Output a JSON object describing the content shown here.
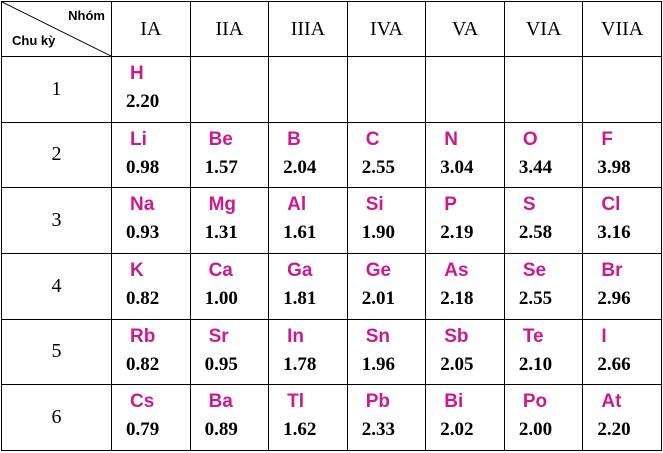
{
  "header": {
    "corner_top": "Nhóm",
    "corner_bottom": "Chu kỳ",
    "groups": [
      "IA",
      "IIA",
      "IIIA",
      "IVA",
      "VA",
      "VIA",
      "VIIA"
    ]
  },
  "rows": [
    {
      "period": "1",
      "cells": [
        {
          "symbol": "H",
          "value": "2.20"
        },
        null,
        null,
        null,
        null,
        null,
        null
      ]
    },
    {
      "period": "2",
      "cells": [
        {
          "symbol": "Li",
          "value": "0.98"
        },
        {
          "symbol": "Be",
          "value": "1.57"
        },
        {
          "symbol": "B",
          "value": "2.04"
        },
        {
          "symbol": "C",
          "value": "2.55"
        },
        {
          "symbol": "N",
          "value": "3.04"
        },
        {
          "symbol": "O",
          "value": "3.44"
        },
        {
          "symbol": "F",
          "value": "3.98"
        }
      ]
    },
    {
      "period": "3",
      "cells": [
        {
          "symbol": "Na",
          "value": "0.93"
        },
        {
          "symbol": "Mg",
          "value": "1.31"
        },
        {
          "symbol": "Al",
          "value": "1.61"
        },
        {
          "symbol": "Si",
          "value": "1.90"
        },
        {
          "symbol": "P",
          "value": "2.19"
        },
        {
          "symbol": "S",
          "value": "2.58"
        },
        {
          "symbol": "Cl",
          "value": "3.16"
        }
      ]
    },
    {
      "period": "4",
      "cells": [
        {
          "symbol": "K",
          "value": "0.82"
        },
        {
          "symbol": "Ca",
          "value": "1.00"
        },
        {
          "symbol": "Ga",
          "value": "1.81"
        },
        {
          "symbol": "Ge",
          "value": "2.01"
        },
        {
          "symbol": "As",
          "value": "2.18"
        },
        {
          "symbol": "Se",
          "value": "2.55"
        },
        {
          "symbol": "Br",
          "value": "2.96"
        }
      ]
    },
    {
      "period": "5",
      "cells": [
        {
          "symbol": "Rb",
          "value": "0.82"
        },
        {
          "symbol": "Sr",
          "value": "0.95"
        },
        {
          "symbol": "In",
          "value": "1.78"
        },
        {
          "symbol": "Sn",
          "value": "1.96"
        },
        {
          "symbol": "Sb",
          "value": "2.05"
        },
        {
          "symbol": "Te",
          "value": "2.10"
        },
        {
          "symbol": "I",
          "value": "2.66"
        }
      ]
    },
    {
      "period": "6",
      "cells": [
        {
          "symbol": "Cs",
          "value": "0.79"
        },
        {
          "symbol": "Ba",
          "value": "0.89"
        },
        {
          "symbol": "Tl",
          "value": "1.62"
        },
        {
          "symbol": "Pb",
          "value": "2.33"
        },
        {
          "symbol": "Bi",
          "value": "2.02"
        },
        {
          "symbol": "Po",
          "value": "2.00"
        },
        {
          "symbol": "At",
          "value": "2.20"
        }
      ]
    }
  ],
  "colors": {
    "symbol": "#cc1a8e",
    "value": "#000000",
    "border": "#000000"
  }
}
